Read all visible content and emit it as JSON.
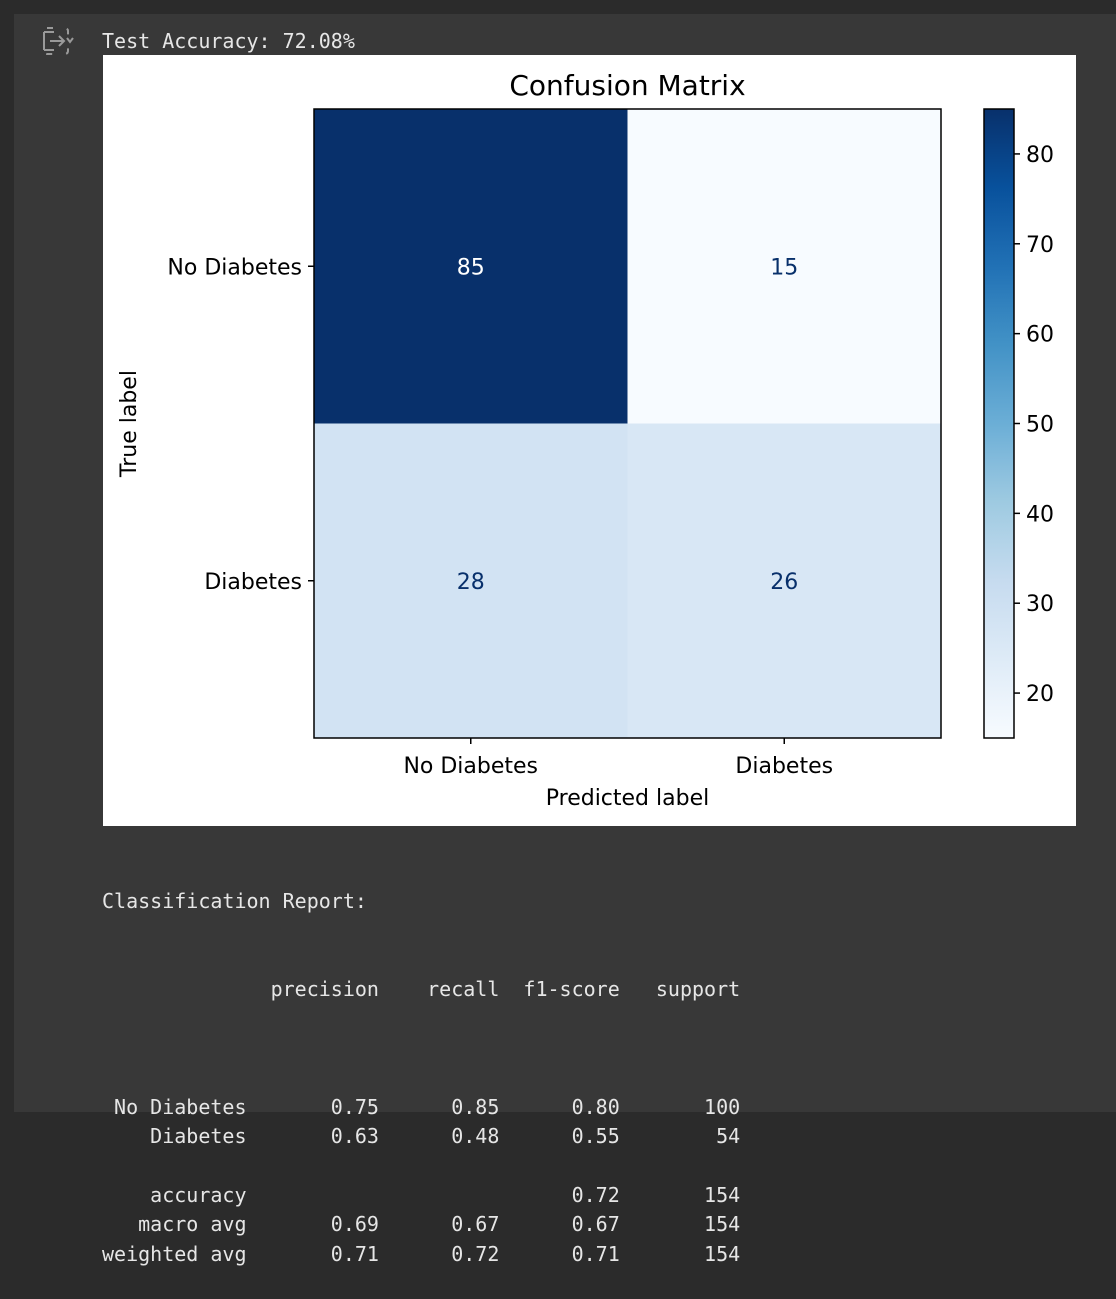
{
  "output": {
    "accuracy_text": "Test Accuracy: 72.08%"
  },
  "chart_data": {
    "type": "heatmap",
    "title": "Confusion Matrix",
    "xlabel": "Predicted label",
    "ylabel": "True label",
    "x_categories": [
      "No Diabetes",
      "Diabetes"
    ],
    "y_categories": [
      "No Diabetes",
      "Diabetes"
    ],
    "values": [
      [
        85,
        15
      ],
      [
        28,
        26
      ]
    ],
    "colormap": "Blues",
    "colorbar": {
      "range": [
        15,
        85
      ],
      "ticks": [
        20,
        30,
        40,
        50,
        60,
        70,
        80
      ]
    },
    "cell_text_colors": {
      "dark": "#ffffff",
      "light": "#08306b"
    }
  },
  "report": {
    "title": "Classification Report:",
    "header": "              precision    recall  f1-score   support",
    "lines": [
      "",
      " No Diabetes       0.75      0.85      0.80       100",
      "    Diabetes       0.63      0.48      0.55        54",
      "",
      "    accuracy                           0.72       154",
      "   macro avg       0.69      0.67      0.67       154",
      "weighted avg       0.71      0.72      0.71       154"
    ]
  }
}
